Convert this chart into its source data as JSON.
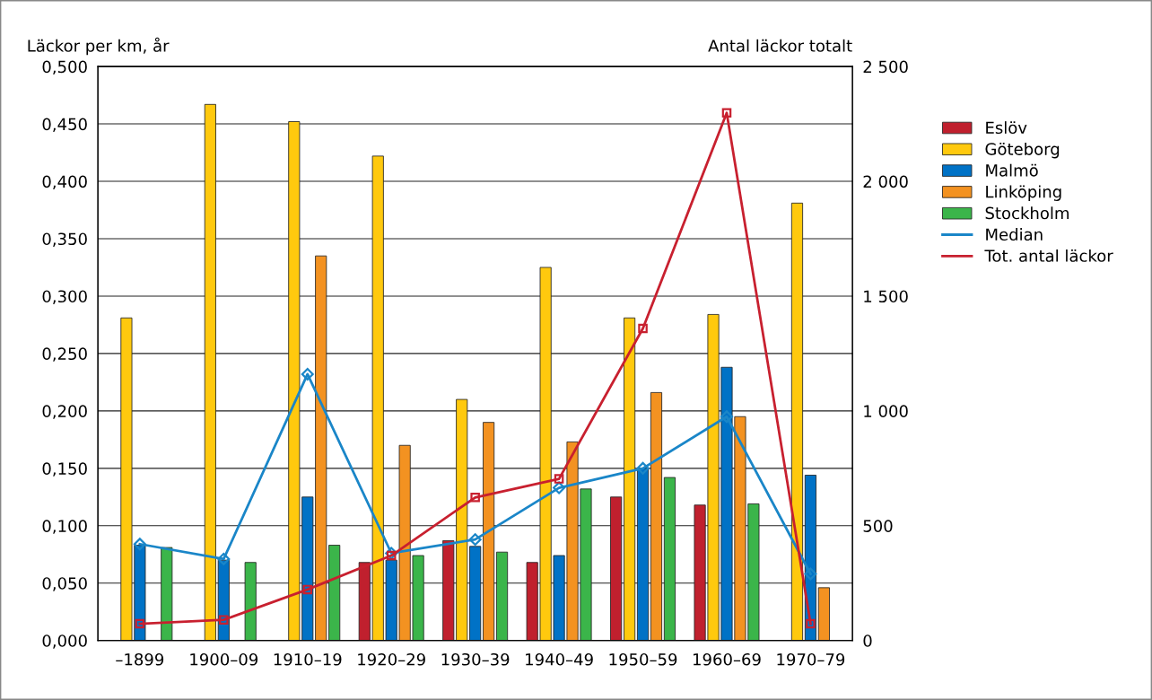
{
  "chart_data": {
    "type": "bar",
    "ylabel": "Läckor per km, år",
    "y2label": "Antal läckor totalt",
    "categories": [
      "–1899",
      "1900–09",
      "1910–19",
      "1920–29",
      "1930–39",
      "1940–49",
      "1950–59",
      "1960–69",
      "1970–79"
    ],
    "series": [
      {
        "name": "Eslöv",
        "color": "#c0202e",
        "values": [
          null,
          null,
          null,
          0.068,
          0.087,
          0.068,
          0.125,
          0.118,
          null
        ]
      },
      {
        "name": "Göteborg",
        "color": "#ffc90e",
        "values": [
          0.281,
          0.467,
          0.452,
          0.422,
          0.21,
          0.325,
          0.281,
          0.284,
          0.381
        ]
      },
      {
        "name": "Malmö",
        "color": "#0072c6",
        "values": [
          0.083,
          0.07,
          0.125,
          0.07,
          0.082,
          0.074,
          0.15,
          0.238,
          0.144
        ]
      },
      {
        "name": "Linköping",
        "color": "#f39221",
        "values": [
          null,
          null,
          0.335,
          0.17,
          0.19,
          0.173,
          0.216,
          0.195,
          0.046
        ]
      },
      {
        "name": "Stockholm",
        "color": "#3bb54a",
        "values": [
          0.081,
          0.068,
          0.083,
          0.074,
          0.077,
          0.132,
          0.142,
          0.119,
          null
        ]
      },
      {
        "name": "Median",
        "type": "line",
        "marker": "diamond",
        "color": "#1a86c8",
        "values": [
          0.084,
          0.071,
          0.232,
          0.076,
          0.088,
          0.133,
          0.15,
          0.195,
          0.058
        ]
      },
      {
        "name": "Tot. antal läckor",
        "type": "line",
        "marker": "square",
        "axis": "y2",
        "color": "#c8202f",
        "values": [
          73,
          90,
          222,
          370,
          623,
          704,
          1359,
          2298,
          73
        ]
      }
    ],
    "ylim": [
      0,
      0.5
    ],
    "yticks": [
      {
        "value": 0,
        "label": "0,000"
      },
      {
        "value": 0.05,
        "label": "0,050"
      },
      {
        "value": 0.1,
        "label": "0,100"
      },
      {
        "value": 0.15,
        "label": "0,150"
      },
      {
        "value": 0.2,
        "label": "0,200"
      },
      {
        "value": 0.25,
        "label": "0,250"
      },
      {
        "value": 0.3,
        "label": "0,300"
      },
      {
        "value": 0.35,
        "label": "0,350"
      },
      {
        "value": 0.4,
        "label": "0,400"
      },
      {
        "value": 0.45,
        "label": "0,450"
      },
      {
        "value": 0.5,
        "label": "0,500"
      }
    ],
    "y2lim": [
      0,
      2500
    ],
    "y2ticks": [
      0,
      {
        "value": 500,
        "label": "500"
      },
      {
        "value": 1000,
        "label": "1 000"
      },
      {
        "value": 1500,
        "label": "1 500"
      },
      {
        "value": 2000,
        "label": "2 000"
      },
      {
        "value": 2500,
        "label": "2 500"
      }
    ],
    "grid": "y",
    "legend": "right"
  }
}
